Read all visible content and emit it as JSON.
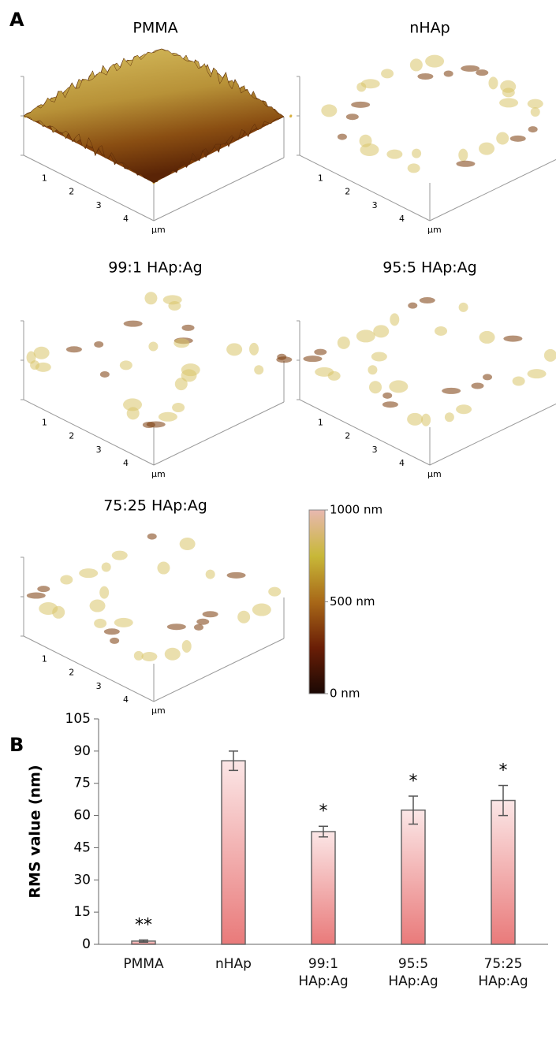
{
  "panel_a": {
    "label": "A",
    "panels": [
      {
        "title": "PMMA",
        "rough": false
      },
      {
        "title": "nHAp",
        "rough": true
      },
      {
        "title": "99:1 HAp:Ag",
        "rough": true
      },
      {
        "title": "95:5 HAp:Ag",
        "rough": true
      },
      {
        "title": "75:25 HAp:Ag",
        "rough": true
      }
    ],
    "axis_ticks": [
      1,
      2,
      3,
      4
    ],
    "axis_unit": "µm",
    "colorbar": {
      "lim": [
        0,
        1000
      ],
      "ticks": [
        {
          "value": 1000,
          "label": "1000 nm"
        },
        {
          "value": 500,
          "label": "500 nm"
        },
        {
          "value": 0,
          "label": "0 nm"
        }
      ]
    }
  },
  "chart_data": {
    "type": "bar",
    "panel_label": "B",
    "y_label": "RMS value (nm)",
    "categories": [
      "PMMA",
      "nHAp",
      "99:1 HAp:Ag",
      "95:5 HAp:Ag",
      "75:25 HAp:Ag"
    ],
    "values": [
      1.5,
      85.5,
      52.5,
      62.5,
      67
    ],
    "errors": [
      0.5,
      4.5,
      2.5,
      6.5,
      7
    ],
    "significance": [
      "**",
      null,
      "*",
      "*",
      "*"
    ],
    "ylim": [
      0,
      105
    ],
    "yticks": [
      0,
      15,
      30,
      45,
      60,
      75,
      90,
      105
    ]
  }
}
